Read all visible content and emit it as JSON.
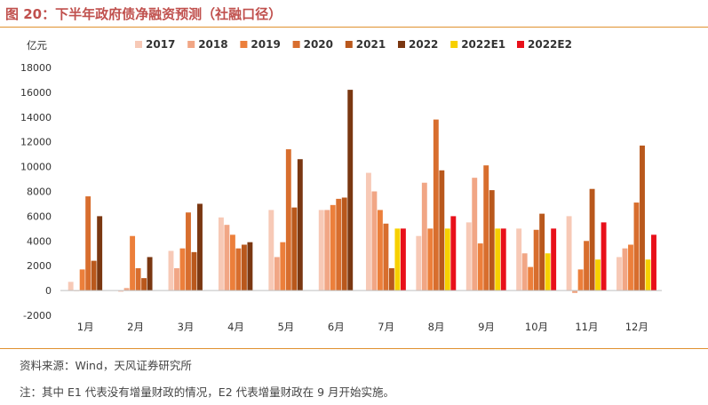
{
  "figure": {
    "title": "图 20：下半年政府债净融资预测（社融口径）",
    "source": "资料来源：Wind，天风证券研究所",
    "note": "注：其中 E1 代表没有增量财政的情况，E2 代表增量财政在 9 月开始实施。",
    "accent_color": "#c0504d",
    "rule_color": "#e0912f"
  },
  "chart_data": {
    "type": "bar",
    "title": "",
    "xlabel": "",
    "ylabel": "亿元",
    "ylim": [
      -2000,
      18000
    ],
    "yticks": [
      -2000,
      0,
      2000,
      4000,
      6000,
      8000,
      10000,
      12000,
      14000,
      16000,
      18000
    ],
    "grid": false,
    "legend_position": "top",
    "categories": [
      "1月",
      "2月",
      "3月",
      "4月",
      "5月",
      "6月",
      "7月",
      "8月",
      "9月",
      "10月",
      "11月",
      "12月"
    ],
    "series": [
      {
        "name": "2017",
        "color": "#f7c9b6",
        "values": [
          700,
          -100,
          3200,
          5900,
          6500,
          6500,
          9500,
          4400,
          5500,
          5000,
          6000,
          2700
        ]
      },
      {
        "name": "2018",
        "color": "#f1a685",
        "values": [
          0,
          200,
          1800,
          5300,
          2700,
          6500,
          8000,
          8700,
          9100,
          3000,
          -200,
          3400
        ]
      },
      {
        "name": "2019",
        "color": "#ec7f3b",
        "values": [
          1700,
          4400,
          3400,
          4500,
          3900,
          6900,
          6500,
          5000,
          3800,
          1900,
          1700,
          3700
        ]
      },
      {
        "name": "2020",
        "color": "#d86e2e",
        "values": [
          7600,
          1800,
          6300,
          3400,
          11400,
          7400,
          5400,
          13800,
          10100,
          4900,
          4000,
          7100
        ]
      },
      {
        "name": "2021",
        "color": "#b9581c",
        "values": [
          2400,
          1000,
          3100,
          3700,
          6700,
          7500,
          1800,
          9700,
          8100,
          6200,
          8200,
          11700
        ]
      },
      {
        "name": "2022",
        "color": "#7a3711",
        "values": [
          6000,
          2700,
          7000,
          3900,
          10600,
          16200,
          null,
          null,
          null,
          null,
          null,
          null
        ]
      },
      {
        "name": "2022E1",
        "color": "#f7d000",
        "values": [
          null,
          null,
          null,
          null,
          null,
          null,
          5000,
          5000,
          5000,
          3000,
          2500,
          2500
        ]
      },
      {
        "name": "2022E2",
        "color": "#e8101a",
        "values": [
          null,
          null,
          null,
          null,
          null,
          null,
          5000,
          6000,
          5000,
          5000,
          5500,
          4500
        ]
      }
    ]
  }
}
